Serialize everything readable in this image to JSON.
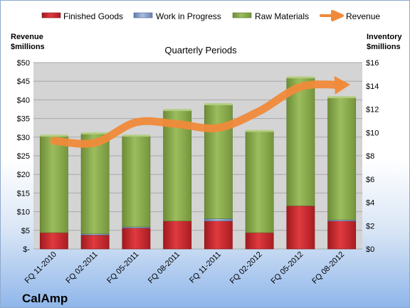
{
  "company": "CalAmp",
  "colors": {
    "finished_goods": "#c0262b",
    "work_in_progress": "#7f96c4",
    "raw_materials": "#8aac4e",
    "revenue": "#f08a3a",
    "plot_bg": "#d4d4d4"
  },
  "chart_data": {
    "type": "bar",
    "title": "Quarterly Periods",
    "stacked": true,
    "categories": [
      "FQ 11-2010",
      "FQ 02-2011",
      "FQ 05-2011",
      "FQ 08-2011",
      "FQ 11-2011",
      "FQ 02-2012",
      "FQ 05-2012",
      "FQ 08-2012"
    ],
    "series": [
      {
        "name": "Finished Goods",
        "axis": "right",
        "values": [
          1.4,
          1.2,
          1.8,
          2.4,
          2.4,
          1.4,
          3.7,
          2.4
        ]
      },
      {
        "name": "Work in Progress",
        "axis": "right",
        "values": [
          0.0,
          0.1,
          0.1,
          0.0,
          0.2,
          0.0,
          0.0,
          0.1
        ]
      },
      {
        "name": "Raw Materials",
        "axis": "right",
        "values": [
          8.3,
          8.6,
          7.8,
          9.5,
          9.8,
          8.7,
          11.0,
          10.5
        ]
      },
      {
        "name": "Revenue",
        "type": "line",
        "axis": "left",
        "values": [
          29.0,
          28.5,
          34.0,
          33.5,
          32.5,
          37.0,
          43.5,
          44.0
        ]
      }
    ],
    "left_axis": {
      "label_line1": "Revenue",
      "label_line2": "$millions",
      "min": 0,
      "max": 50,
      "ticks": [
        "$-",
        "$5",
        "$10",
        "$15",
        "$20",
        "$25",
        "$30",
        "$35",
        "$40",
        "$45",
        "$50"
      ]
    },
    "right_axis": {
      "label_line1": "Inventory",
      "label_line2": "$millions",
      "min": 0,
      "max": 16,
      "ticks": [
        "$0",
        "$2",
        "$4",
        "$6",
        "$8",
        "$10",
        "$12",
        "$14",
        "$16"
      ]
    },
    "legend": {
      "position": "top"
    },
    "grid": true
  }
}
